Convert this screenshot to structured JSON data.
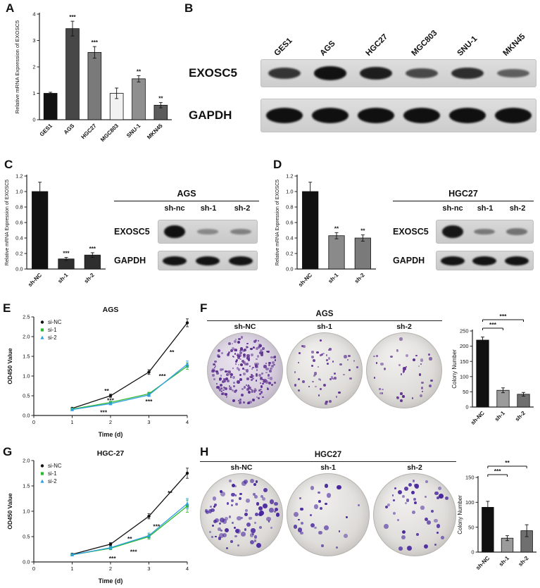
{
  "labels": {
    "A": "A",
    "B": "B",
    "C": "C",
    "D": "D",
    "E": "E",
    "F": "F",
    "G": "G",
    "H": "H"
  },
  "chart_data": [
    {
      "id": "A",
      "type": "bar",
      "title": "",
      "ylabel": "Relative mRNA Expression of EXOSC5",
      "categories": [
        "GES1",
        "AGS",
        "HGC27",
        "MGC803",
        "SNU-1",
        "MKN45"
      ],
      "values": [
        1.0,
        3.45,
        2.55,
        1.0,
        1.55,
        0.55
      ],
      "errors": [
        0.04,
        0.28,
        0.22,
        0.2,
        0.12,
        0.1
      ],
      "sig": [
        "",
        "***",
        "***",
        "",
        "**",
        "**"
      ],
      "colors": [
        "#111111",
        "#474747",
        "#7a7a7a",
        "#f2f2f2",
        "#8f8f8f",
        "#5c5c5c"
      ],
      "ylim": [
        0,
        4
      ],
      "yticks": [
        0,
        1,
        2,
        3,
        4
      ]
    },
    {
      "id": "C",
      "type": "bar",
      "title": "",
      "ylabel": "Relative mRNA Expression of EXOSC5",
      "categories": [
        "sh-NC",
        "sh-1",
        "sh-2"
      ],
      "values": [
        1.0,
        0.13,
        0.18
      ],
      "errors": [
        0.12,
        0.02,
        0.03
      ],
      "sig": [
        "",
        "***",
        "***"
      ],
      "colors": [
        "#111111",
        "#2e2e2e",
        "#2e2e2e"
      ],
      "ylim": [
        0,
        1.2
      ],
      "yticks": [
        0,
        0.2,
        0.4,
        0.6,
        0.8,
        1.0,
        1.2
      ]
    },
    {
      "id": "D",
      "type": "bar",
      "title": "",
      "ylabel": "Relative mRNA Expression of EXOSC5",
      "categories": [
        "sh-NC",
        "sh-1",
        "sh-2"
      ],
      "values": [
        1.0,
        0.43,
        0.4
      ],
      "errors": [
        0.12,
        0.04,
        0.04
      ],
      "sig": [
        "",
        "**",
        "**"
      ],
      "colors": [
        "#111111",
        "#8a8a8a",
        "#7a7a7a"
      ],
      "ylim": [
        0,
        1.2
      ],
      "yticks": [
        0,
        0.2,
        0.4,
        0.6,
        0.8,
        1.0,
        1.2
      ]
    },
    {
      "id": "E",
      "type": "line",
      "title": "AGS",
      "xlabel": "Time (d)",
      "ylabel": "OD450 Value",
      "x": [
        1,
        2,
        3,
        4
      ],
      "xlim": [
        0,
        4
      ],
      "xticks": [
        0,
        1,
        2,
        3,
        4
      ],
      "ylim": [
        0,
        2.5
      ],
      "yticks": [
        0,
        0.5,
        1,
        1.5,
        2,
        2.5
      ],
      "series": [
        {
          "name": "si-NC",
          "color": "#111111",
          "values": [
            0.18,
            0.5,
            1.1,
            2.35
          ],
          "errors": [
            0.02,
            0.04,
            0.06,
            0.1
          ]
        },
        {
          "name": "si-1",
          "color": "#2db82d",
          "values": [
            0.16,
            0.33,
            0.55,
            1.25
          ],
          "errors": [
            0.02,
            0.03,
            0.04,
            0.08
          ]
        },
        {
          "name": "si-2",
          "color": "#2f9fe0",
          "values": [
            0.15,
            0.3,
            0.52,
            1.3
          ],
          "errors": [
            0.02,
            0.03,
            0.04,
            0.08
          ]
        }
      ],
      "annotations": [
        {
          "x": 3.6,
          "y": 1.55,
          "text": "**"
        },
        {
          "x": 3.35,
          "y": 0.95,
          "text": "***"
        },
        {
          "x": 3.0,
          "y": 0.3,
          "text": "***"
        },
        {
          "x": 1.9,
          "y": 0.57,
          "text": "**"
        },
        {
          "x": 2.0,
          "y": 0.33,
          "text": "***"
        },
        {
          "x": 1.82,
          "y": 0.03,
          "text": "***"
        }
      ]
    },
    {
      "id": "F-bar",
      "type": "bar",
      "title": "",
      "ylabel": "Colony Number",
      "categories": [
        "sh-NC",
        "sh-1",
        "sh-2"
      ],
      "values": [
        220,
        55,
        42
      ],
      "errors": [
        10,
        8,
        6
      ],
      "sig": [
        "",
        "",
        ""
      ],
      "colors": [
        "#111111",
        "#9b9b9b",
        "#6f6f6f"
      ],
      "ylim": [
        0,
        250
      ],
      "yticks": [
        0,
        50,
        100,
        150,
        200,
        250
      ],
      "brackets": [
        {
          "from": 0,
          "to": 2,
          "text": "***"
        },
        {
          "from": 0,
          "to": 1,
          "text": "***"
        }
      ]
    },
    {
      "id": "G",
      "type": "line",
      "title": "HGC-27",
      "xlabel": "Time (d)",
      "ylabel": "OD450 Value",
      "x": [
        1,
        2,
        3,
        4
      ],
      "xlim": [
        0,
        4
      ],
      "xticks": [
        0,
        1,
        2,
        3,
        4
      ],
      "ylim": [
        0,
        2.0
      ],
      "yticks": [
        0,
        0.5,
        1,
        1.5,
        2
      ],
      "series": [
        {
          "name": "si-NC",
          "color": "#111111",
          "values": [
            0.15,
            0.35,
            0.9,
            1.75
          ],
          "errors": [
            0.02,
            0.03,
            0.05,
            0.1
          ]
        },
        {
          "name": "si-1",
          "color": "#2db82d",
          "values": [
            0.14,
            0.27,
            0.5,
            1.1
          ],
          "errors": [
            0.02,
            0.03,
            0.05,
            0.12
          ]
        },
        {
          "name": "si-2",
          "color": "#2f9fe0",
          "values": [
            0.14,
            0.28,
            0.52,
            1.15
          ],
          "errors": [
            0.02,
            0.03,
            0.05,
            0.1
          ]
        }
      ],
      "annotations": [
        {
          "x": 3.55,
          "y": 1.32,
          "text": "**"
        },
        {
          "x": 3.2,
          "y": 0.66,
          "text": "***"
        },
        {
          "x": 2.5,
          "y": 0.42,
          "text": "**"
        },
        {
          "x": 2.6,
          "y": 0.16,
          "text": "***"
        },
        {
          "x": 2.05,
          "y": 0.03,
          "text": "***"
        }
      ]
    },
    {
      "id": "H-bar",
      "type": "bar",
      "title": "",
      "ylabel": "Colony Number",
      "categories": [
        "sh-NC",
        "sh-1",
        "sh-2"
      ],
      "values": [
        90,
        28,
        43
      ],
      "errors": [
        12,
        5,
        12
      ],
      "sig": [
        "",
        "",
        ""
      ],
      "colors": [
        "#111111",
        "#9b9b9b",
        "#6f6f6f"
      ],
      "ylim": [
        0,
        150
      ],
      "yticks": [
        0,
        50,
        100,
        150
      ],
      "brackets": [
        {
          "from": 0,
          "to": 2,
          "text": "**"
        },
        {
          "from": 0,
          "to": 1,
          "text": "***"
        }
      ]
    }
  ],
  "blots": {
    "B": {
      "col_labels": [
        "GES1",
        "AGS",
        "HGC27",
        "MGC803",
        "SNU-1",
        "MKN45"
      ],
      "rows": [
        {
          "label": "EXOSC5",
          "intensities": [
            0.7,
            0.95,
            0.85,
            0.55,
            0.75,
            0.4
          ]
        },
        {
          "label": "GAPDH",
          "intensities": [
            1,
            1,
            1,
            1,
            1,
            1
          ]
        }
      ]
    },
    "C": {
      "title": "AGS",
      "col_labels": [
        "sh-nc",
        "sh-1",
        "sh-2"
      ],
      "rows": [
        {
          "label": "EXOSC5",
          "intensities": [
            0.95,
            0.15,
            0.2
          ]
        },
        {
          "label": "GAPDH",
          "intensities": [
            0.95,
            0.85,
            0.85
          ]
        }
      ]
    },
    "D": {
      "title": "HGC27",
      "col_labels": [
        "sh-nc",
        "sh-1",
        "sh-2"
      ],
      "rows": [
        {
          "label": "EXOSC5",
          "intensities": [
            0.9,
            0.25,
            0.3
          ]
        },
        {
          "label": "GAPDH",
          "intensities": [
            0.9,
            0.85,
            0.85
          ]
        }
      ]
    }
  },
  "colonies": {
    "F": {
      "title": "AGS",
      "dish_labels": [
        "sh-NC",
        "sh-1",
        "sh-2"
      ],
      "counts": [
        220,
        55,
        42
      ],
      "dot_color": "#5b2d8e",
      "dot_size": [
        2,
        4.5
      ]
    },
    "H": {
      "title": "HGC27",
      "dish_labels": [
        "sh-NC",
        "sh-1",
        "sh-2"
      ],
      "counts": [
        90,
        28,
        43
      ],
      "dot_color": "#46249c",
      "dot_size": [
        2.5,
        7
      ]
    }
  }
}
